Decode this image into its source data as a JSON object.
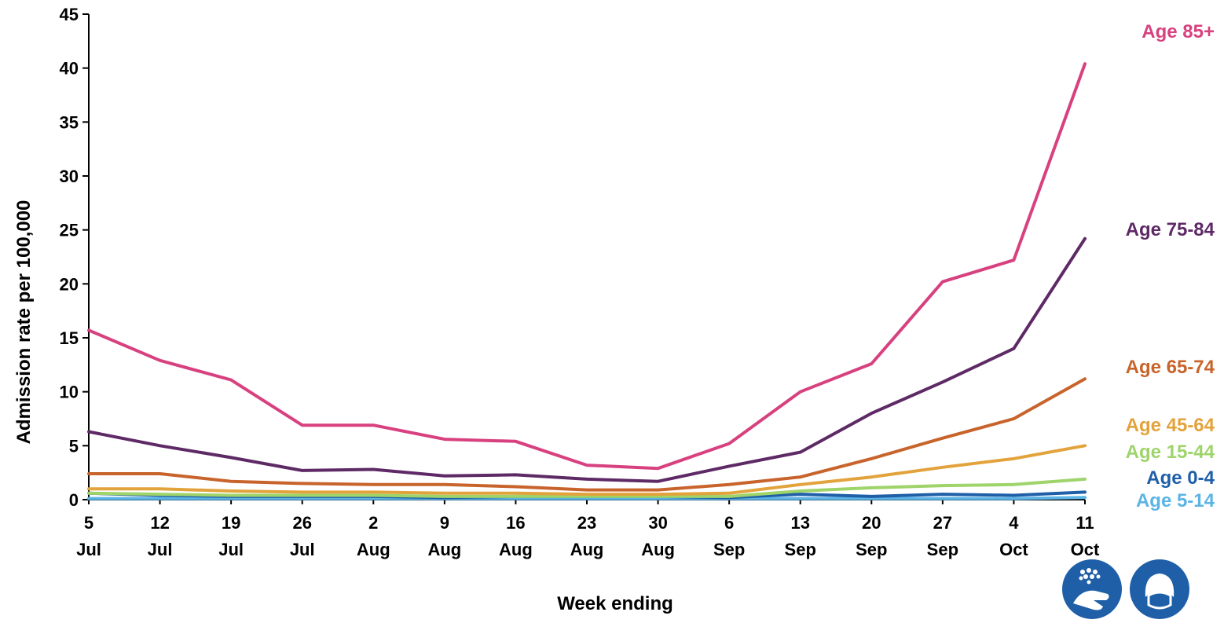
{
  "chart_data": {
    "type": "line",
    "xlabel": "Week ending",
    "ylabel": "Admission rate per 100,000",
    "ylim": [
      0,
      45
    ],
    "yticks": [
      0,
      5,
      10,
      15,
      20,
      25,
      30,
      35,
      40,
      45
    ],
    "grid": false,
    "categories": [
      {
        "day": "5",
        "month": "Jul"
      },
      {
        "day": "12",
        "month": "Jul"
      },
      {
        "day": "19",
        "month": "Jul"
      },
      {
        "day": "26",
        "month": "Jul"
      },
      {
        "day": "2",
        "month": "Aug"
      },
      {
        "day": "9",
        "month": "Aug"
      },
      {
        "day": "16",
        "month": "Aug"
      },
      {
        "day": "23",
        "month": "Aug"
      },
      {
        "day": "30",
        "month": "Aug"
      },
      {
        "day": "6",
        "month": "Sep"
      },
      {
        "day": "13",
        "month": "Sep"
      },
      {
        "day": "20",
        "month": "Sep"
      },
      {
        "day": "27",
        "month": "Sep"
      },
      {
        "day": "4",
        "month": "Oct"
      },
      {
        "day": "11",
        "month": "Oct"
      }
    ],
    "series": [
      {
        "name": "Age 5-14",
        "color": "#5BB4E5",
        "values": [
          0.1,
          0.1,
          0.1,
          0.1,
          0.1,
          0.1,
          0.1,
          0.1,
          0.1,
          0.1,
          0.1,
          0.1,
          0.1,
          0.1,
          0.2
        ]
      },
      {
        "name": "Age 0-4",
        "color": "#1F5FA8",
        "values": [
          0.6,
          0.4,
          0.3,
          0.3,
          0.3,
          0.2,
          0.3,
          0.3,
          0.3,
          0.2,
          0.5,
          0.3,
          0.5,
          0.4,
          0.7
        ]
      },
      {
        "name": "Age 15-44",
        "color": "#9ED46A",
        "values": [
          0.6,
          0.5,
          0.4,
          0.4,
          0.4,
          0.3,
          0.3,
          0.3,
          0.3,
          0.3,
          0.8,
          1.1,
          1.3,
          1.4,
          1.9
        ]
      },
      {
        "name": "Age 45-64",
        "color": "#E3A33C",
        "values": [
          1.0,
          1.0,
          0.8,
          0.7,
          0.7,
          0.6,
          0.6,
          0.5,
          0.5,
          0.6,
          1.4,
          2.1,
          3.0,
          3.8,
          5.0
        ]
      },
      {
        "name": "Age 65-74",
        "color": "#C8642B",
        "values": [
          2.4,
          2.4,
          1.7,
          1.5,
          1.4,
          1.4,
          1.2,
          0.9,
          0.9,
          1.4,
          2.1,
          3.8,
          5.7,
          7.5,
          11.2
        ]
      },
      {
        "name": "Age 75-84",
        "color": "#5E2A66",
        "values": [
          6.3,
          5.0,
          3.9,
          2.7,
          2.8,
          2.2,
          2.3,
          1.9,
          1.7,
          3.1,
          4.4,
          8.0,
          10.9,
          14.0,
          24.2
        ]
      },
      {
        "name": "Age 85+",
        "color": "#D8417F",
        "values": [
          15.7,
          12.9,
          11.1,
          6.9,
          6.9,
          5.6,
          5.4,
          3.2,
          2.9,
          5.2,
          10.0,
          12.6,
          20.2,
          22.2,
          40.4
        ]
      }
    ]
  },
  "icons": [
    {
      "name": "hand-washing-icon",
      "color": "#1F5FA8"
    },
    {
      "name": "face-covering-icon",
      "color": "#1F5FA8"
    }
  ]
}
